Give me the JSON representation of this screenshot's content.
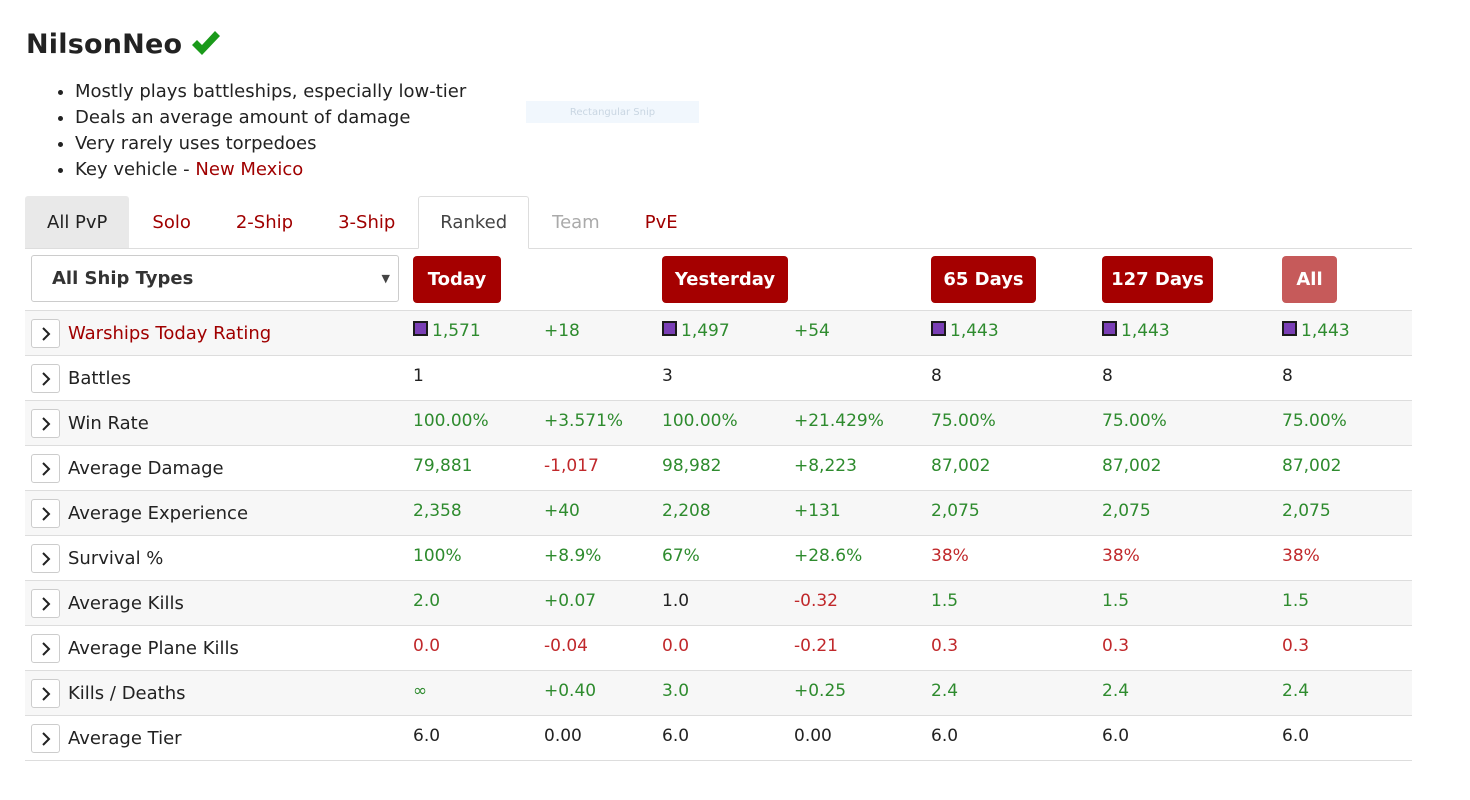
{
  "player": {
    "name": "NilsonNeo"
  },
  "summary": [
    {
      "text": "Mostly plays battleships, especially low-tier"
    },
    {
      "text": "Deals an average amount of damage"
    },
    {
      "text": "Very rarely uses torpedoes"
    },
    {
      "text": "Key vehicle - ",
      "link": "New Mexico"
    }
  ],
  "snip_badge": "Rectangular Snip",
  "tabs": [
    "All PvP",
    "Solo",
    "2-Ship",
    "3-Ship",
    "Ranked",
    "Team",
    "PvE"
  ],
  "filter": {
    "ship_type": "All Ship Types"
  },
  "periods": [
    "Today",
    "Yesterday",
    "65 Days",
    "127 Days",
    "All"
  ],
  "rows": [
    {
      "label": "Warships Today Rating",
      "today": "1,571",
      "today_delta": "+18",
      "yesterday": "1,497",
      "yesterday_delta": "+54",
      "d65": "1,443",
      "d127": "1,443",
      "all": "1,443"
    },
    {
      "label": "Battles",
      "today": "1",
      "today_delta": "",
      "yesterday": "3",
      "yesterday_delta": "",
      "d65": "8",
      "d127": "8",
      "all": "8"
    },
    {
      "label": "Win Rate",
      "today": "100.00%",
      "today_delta": "+3.571%",
      "yesterday": "100.00%",
      "yesterday_delta": "+21.429%",
      "d65": "75.00%",
      "d127": "75.00%",
      "all": "75.00%"
    },
    {
      "label": "Average Damage",
      "today": "79,881",
      "today_delta": "-1,017",
      "yesterday": "98,982",
      "yesterday_delta": "+8,223",
      "d65": "87,002",
      "d127": "87,002",
      "all": "87,002"
    },
    {
      "label": "Average Experience",
      "today": "2,358",
      "today_delta": "+40",
      "yesterday": "2,208",
      "yesterday_delta": "+131",
      "d65": "2,075",
      "d127": "2,075",
      "all": "2,075"
    },
    {
      "label": "Survival %",
      "today": "100%",
      "today_delta": "+8.9%",
      "yesterday": "67%",
      "yesterday_delta": "+28.6%",
      "d65": "38%",
      "d127": "38%",
      "all": "38%"
    },
    {
      "label": "Average Kills",
      "today": "2.0",
      "today_delta": "+0.07",
      "yesterday": "1.0",
      "yesterday_delta": "-0.32",
      "d65": "1.5",
      "d127": "1.5",
      "all": "1.5"
    },
    {
      "label": "Average Plane Kills",
      "today": "0.0",
      "today_delta": "-0.04",
      "yesterday": "0.0",
      "yesterday_delta": "-0.21",
      "d65": "0.3",
      "d127": "0.3",
      "all": "0.3"
    },
    {
      "label": "Kills / Deaths",
      "today": "∞",
      "today_delta": "+0.40",
      "yesterday": "3.0",
      "yesterday_delta": "+0.25",
      "d65": "2.4",
      "d127": "2.4",
      "all": "2.4"
    },
    {
      "label": "Average Tier",
      "today": "6.0",
      "today_delta": "0.00",
      "yesterday": "6.0",
      "yesterday_delta": "0.00",
      "d65": "6.0",
      "d127": "6.0",
      "all": "6.0"
    }
  ],
  "colors": {
    "accent": "#a50000",
    "positive": "#2e8b2e",
    "negative": "#c0282b",
    "rating_swatch": "#7a3fb5",
    "check": "#1a9a1a"
  },
  "icons": {
    "verified": "check-icon",
    "expand": "chevron-right-icon",
    "select": "caret-down-icon",
    "rating": "color-swatch"
  }
}
